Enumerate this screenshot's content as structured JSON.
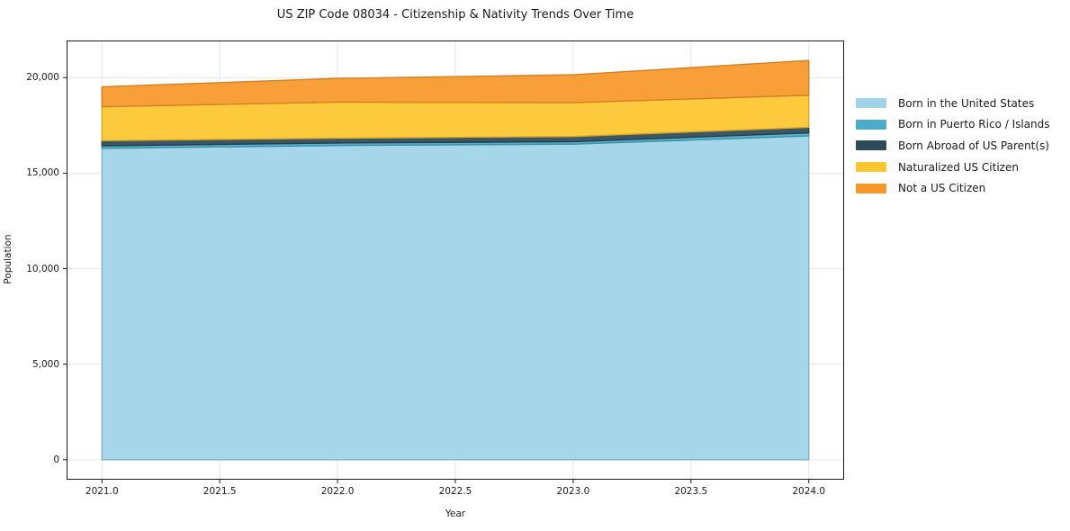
{
  "title": "US ZIP Code 08034 - Citizenship & Nativity Trends Over Time",
  "chart_data": {
    "type": "area",
    "stacked": true,
    "title": "US ZIP Code 08034 - Citizenship & Nativity Trends Over Time",
    "xlabel": "Year",
    "ylabel": "Population",
    "x": [
      2021,
      2022,
      2023,
      2024
    ],
    "series": [
      {
        "name": "Born in the United States",
        "color": "#9FD3E8",
        "values": [
          16300,
          16450,
          16520,
          16950
        ]
      },
      {
        "name": "Born in Puerto Rico / Islands",
        "color": "#4AACC8",
        "values": [
          130,
          130,
          130,
          160
        ]
      },
      {
        "name": "Born Abroad of US Parent(s)",
        "color": "#2C4A5A",
        "values": [
          270,
          250,
          270,
          290
        ]
      },
      {
        "name": "Naturalized US Citizen",
        "color": "#FDC62F",
        "values": [
          1780,
          1890,
          1770,
          1680
        ]
      },
      {
        "name": "Not a US Citizen",
        "color": "#F8982B",
        "values": [
          1040,
          1240,
          1460,
          1820
        ]
      }
    ],
    "cumulative_totals": [
      19520,
      19960,
      20150,
      20900
    ],
    "xlim": [
      2020.85,
      2024.15
    ],
    "ylim": [
      -1045,
      21945
    ],
    "xticks": {
      "values": [
        2021.0,
        2021.5,
        2022.0,
        2022.5,
        2023.0,
        2023.5,
        2024.0
      ],
      "labels": [
        "2021.0",
        "2021.5",
        "2022.0",
        "2022.5",
        "2023.0",
        "2023.5",
        "2024.0"
      ]
    },
    "yticks": {
      "values": [
        0,
        5000,
        10000,
        15000,
        20000
      ],
      "labels": [
        "0",
        "5,000",
        "10,000",
        "15,000",
        "20,000"
      ]
    },
    "grid": true,
    "legend_position": "right of plot, no frame"
  },
  "colors": {
    "background": "#FFFFFF",
    "grid": "#E6E6E6",
    "spine": "#1A1A1A",
    "text": "#1A1A1A"
  }
}
